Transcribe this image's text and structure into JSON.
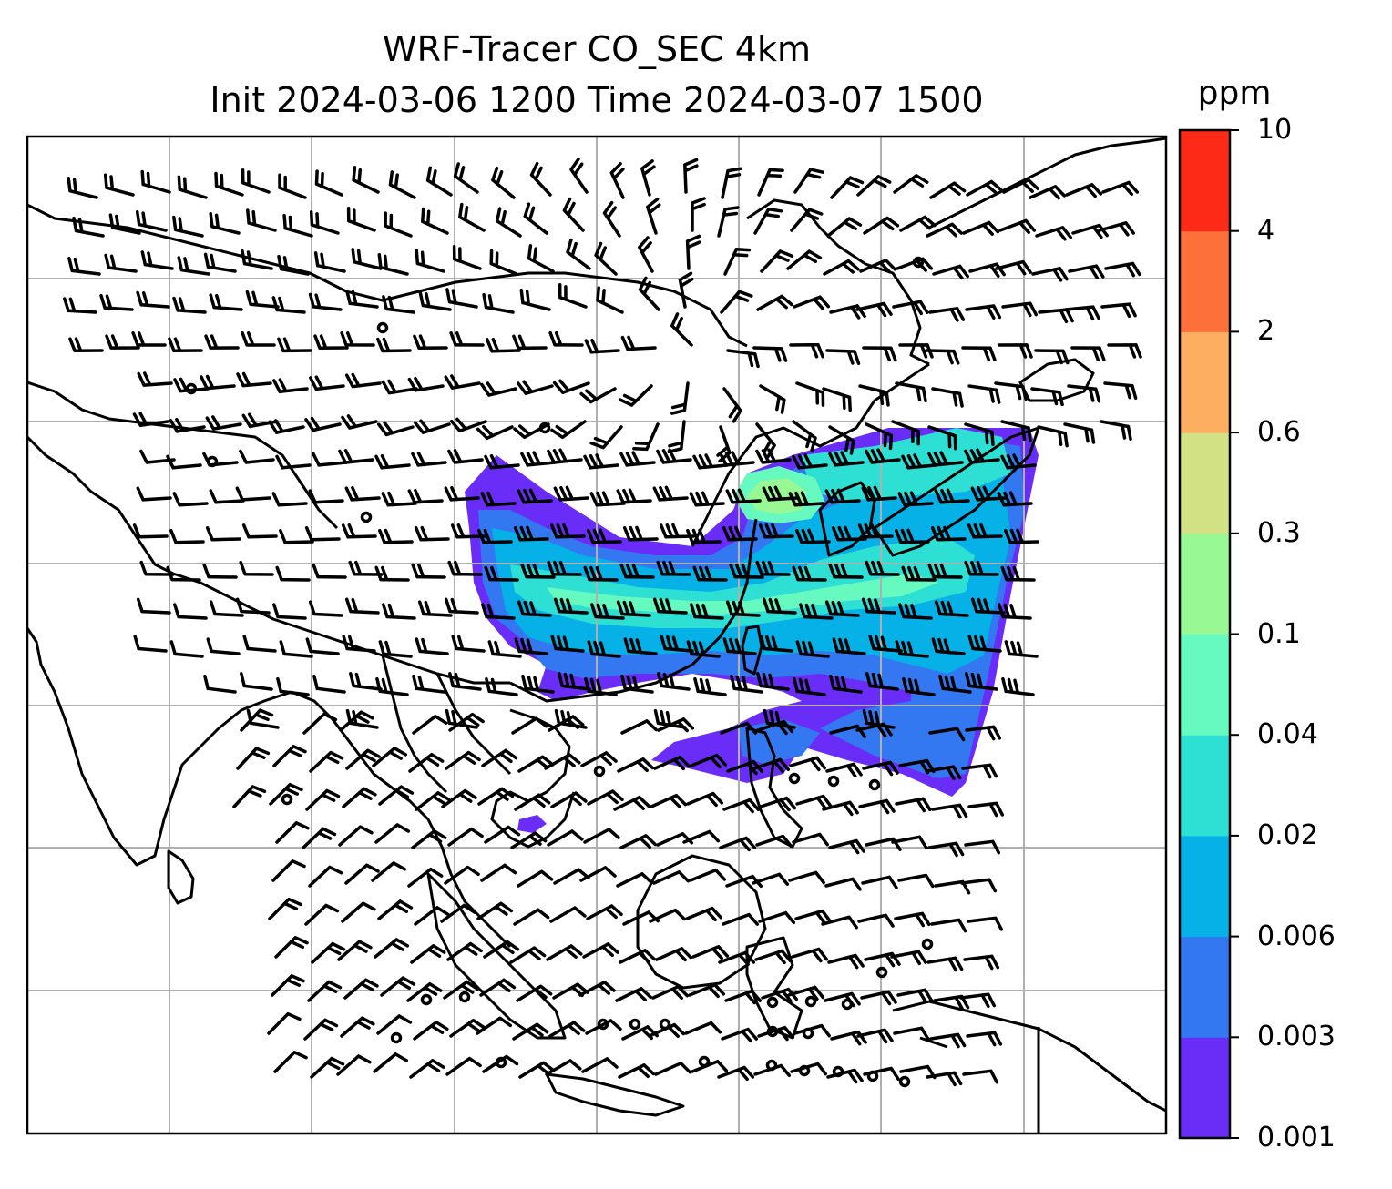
{
  "title": {
    "line1": "WRF-Tracer CO_SEC 4km",
    "line2": "Init 2024-03-06 1200 Time 2024-03-07 1500"
  },
  "colorbar": {
    "unit": "ppm",
    "levels": [
      "0.001",
      "0.003",
      "0.006",
      "0.02",
      "0.04",
      "0.1",
      "0.3",
      "0.6",
      "2",
      "4",
      "10"
    ],
    "colors": [
      "#6a2cf7",
      "#3377f1",
      "#05b1e6",
      "#2edfd4",
      "#66f9c0",
      "#98f894",
      "#d2e183",
      "#fdae61",
      "#fd7039",
      "#fe2a18"
    ]
  },
  "map": {
    "variable": "CO_SEC tracer concentration with wind barbs",
    "background": "#ffffff",
    "coastline_color": "#000000",
    "gridline_color": "#b0b0b0",
    "wind_barb_color": "#000000"
  }
}
